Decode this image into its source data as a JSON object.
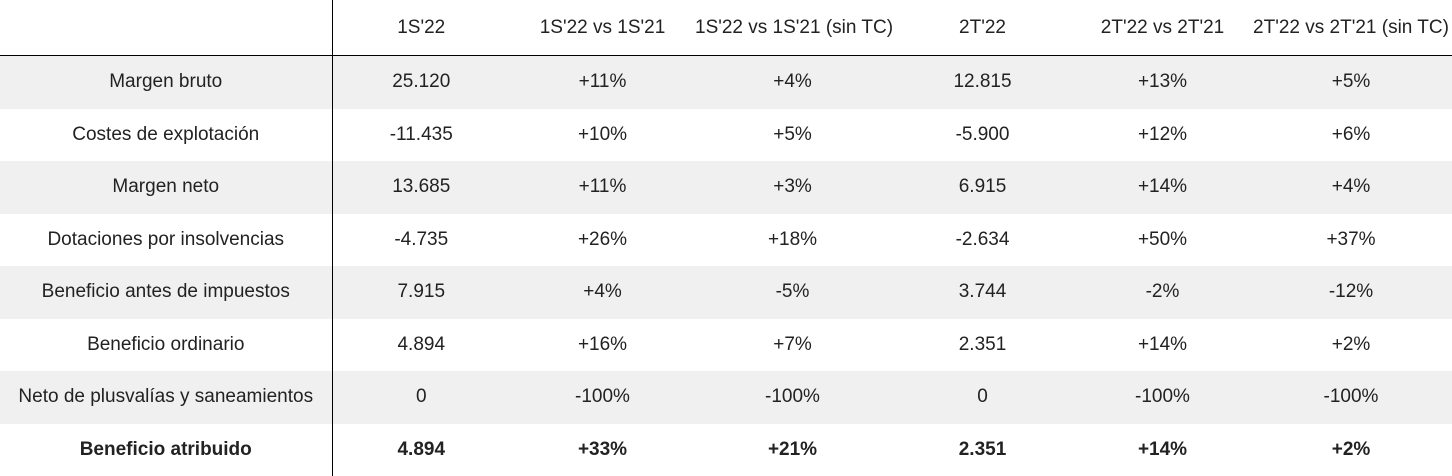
{
  "table": {
    "header": [
      "1S'22",
      "1S'22 vs 1S'21",
      "1S'22 vs 1S'21 (sin TC)",
      "2T'22",
      "2T'22 vs 2T'21",
      "2T'22 vs 2T'21 (sin TC)"
    ],
    "rows": [
      [
        "Margen bruto",
        "25.120",
        "+11%",
        "+4%",
        "12.815",
        "+13%",
        "+5%"
      ],
      [
        "Costes de explotación",
        "-11.435",
        "+10%",
        "+5%",
        "-5.900",
        "+12%",
        "+6%"
      ],
      [
        "Margen neto",
        "13.685",
        "+11%",
        "+3%",
        "6.915",
        "+14%",
        "+4%"
      ],
      [
        "Dotaciones por insolvencias",
        "-4.735",
        "+26%",
        "+18%",
        "-2.634",
        "+50%",
        "+37%"
      ],
      [
        "Beneficio antes de impuestos",
        "7.915",
        "+4%",
        "-5%",
        "3.744",
        "-2%",
        "-12%"
      ],
      [
        "Beneficio ordinario",
        "4.894",
        "+16%",
        "+7%",
        "2.351",
        "+14%",
        "+2%"
      ],
      [
        "Neto de plusvalías y saneamientos",
        "0",
        "-100%",
        "-100%",
        "0",
        "-100%",
        "-100%"
      ],
      [
        "Beneficio atribuido",
        "4.894",
        "+33%",
        "+21%",
        "2.351",
        "+14%",
        "+2%"
      ]
    ]
  }
}
